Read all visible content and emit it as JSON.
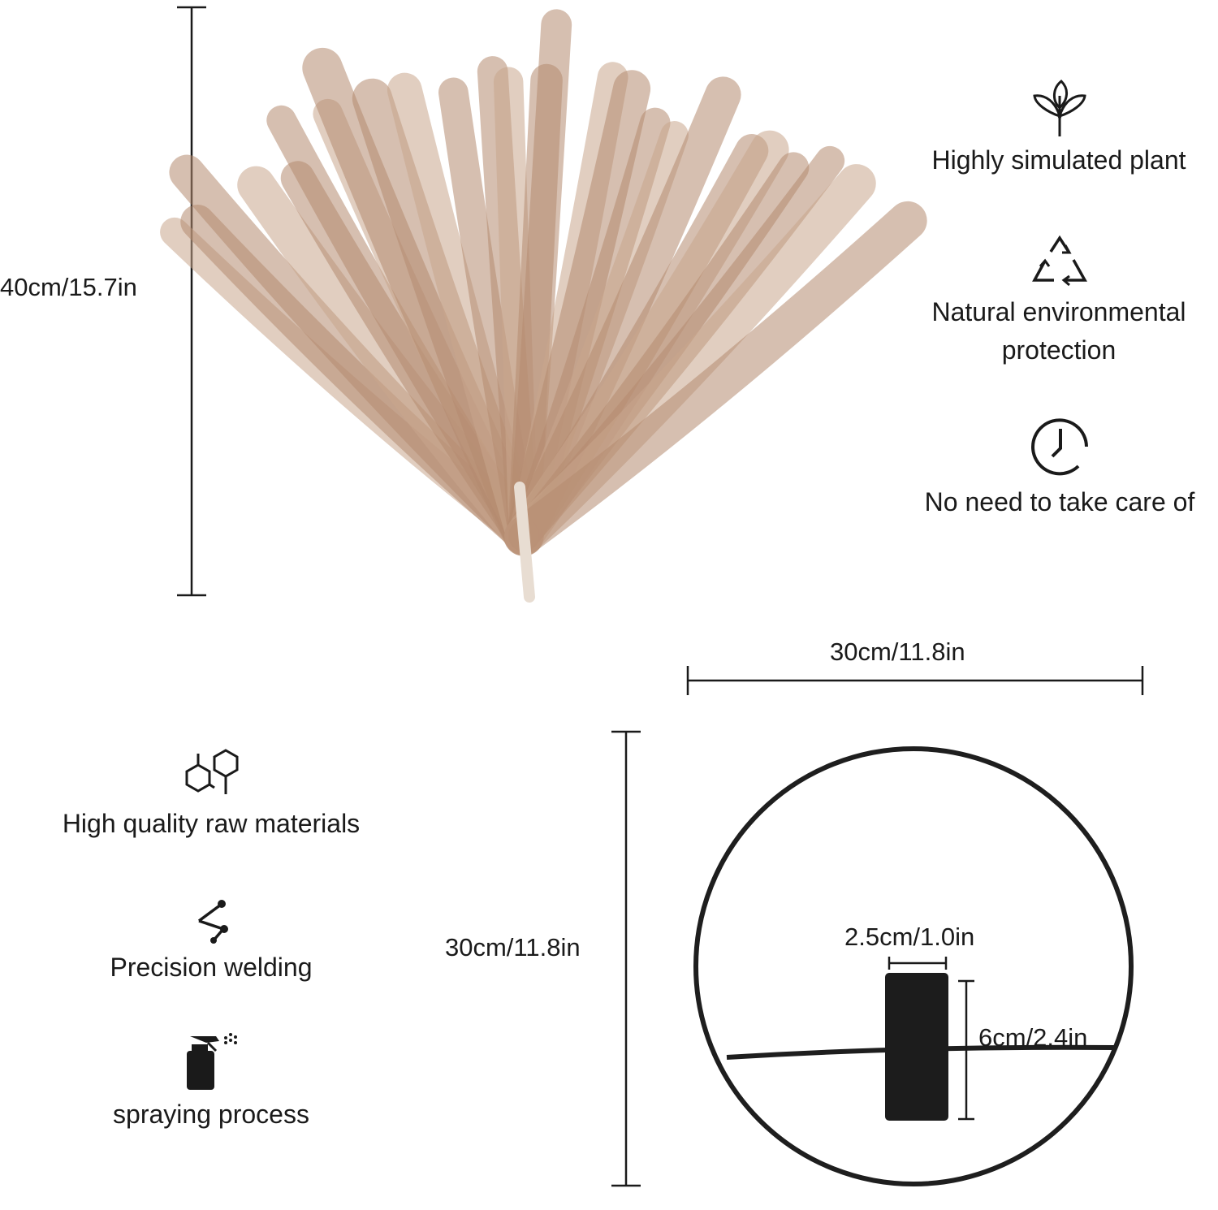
{
  "dimensions": {
    "plant_height": "40cm/15.7in",
    "holder_width": "30cm/11.8in",
    "holder_height": "30cm/11.8in",
    "cup_diameter": "2.5cm/1.0in",
    "cup_height": "6cm/2.4in"
  },
  "features_right": [
    {
      "icon": "leaf-icon",
      "label": "Highly simulated plant"
    },
    {
      "icon": "recycle-icon",
      "label_line1": "Natural environmental",
      "label_line2": "protection"
    },
    {
      "icon": "clock-icon",
      "label": "No need to take care of"
    }
  ],
  "features_left": [
    {
      "icon": "hexagon-molecule-icon",
      "label": "High quality raw materials"
    },
    {
      "icon": "weld-nodes-icon",
      "label": "Precision welding"
    },
    {
      "icon": "spray-bottle-icon",
      "label": "spraying process"
    }
  ],
  "colors": {
    "plume": "#b58b70",
    "line": "#1a1a1a",
    "metal": "#1e1e1e"
  }
}
